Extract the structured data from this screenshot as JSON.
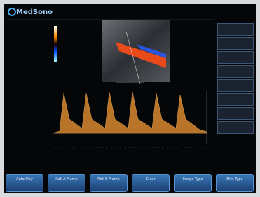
{
  "header": {
    "logo": "MedSono"
  },
  "buttons": [
    {
      "label": "Auto Play"
    },
    {
      "label": "Ref. A Frame"
    },
    {
      "label": "Ref. B Frame"
    },
    {
      "label": "Clear"
    },
    {
      "label": "Image Type"
    },
    {
      "label": "Film Type"
    }
  ]
}
